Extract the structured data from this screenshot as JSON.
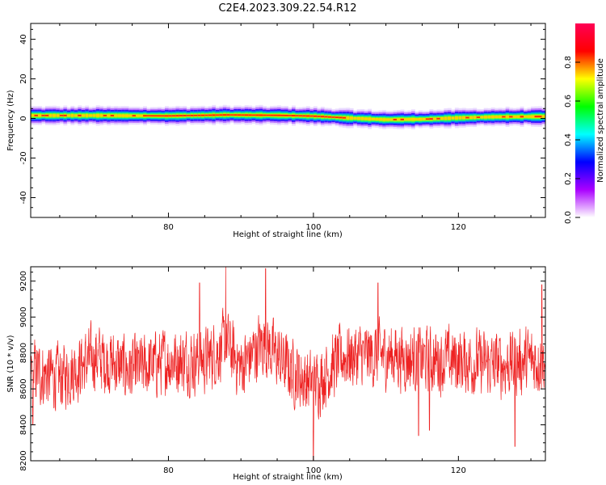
{
  "title": "C2E4.2023.309.22.54.R12",
  "chart_data": [
    {
      "type": "heatmap",
      "xlabel": "Height of straight line (km)",
      "ylabel": "Frequency (Hz)",
      "xlim": [
        61,
        132
      ],
      "ylim": [
        -50,
        48
      ],
      "x_ticks": [
        80,
        100,
        120
      ],
      "y_ticks": [
        40,
        20,
        0,
        -20,
        -40
      ],
      "colorbar": {
        "label": "Normalized spectral amplitude",
        "range": [
          0.0,
          1.0
        ],
        "ticks": [
          0.0,
          0.2,
          0.4,
          0.6,
          0.8
        ],
        "colormap": "gist_rainbow",
        "colors": [
          "#ffffff",
          "#aa00ff",
          "#0000ff",
          "#00ffff",
          "#00ff00",
          "#ffff00",
          "#ff0000",
          "#ff0055"
        ]
      },
      "band": {
        "center_hz": [
          [
            61,
            1.5
          ],
          [
            70,
            1.5
          ],
          [
            80,
            1.3
          ],
          [
            88,
            1.8
          ],
          [
            95,
            1.6
          ],
          [
            100,
            1.2
          ],
          [
            105,
            0.2
          ],
          [
            110,
            -0.6
          ],
          [
            115,
            -0.4
          ],
          [
            120,
            0.3
          ],
          [
            125,
            0.8
          ],
          [
            132,
            1.0
          ]
        ],
        "halfwidth_hz": 4.5
      },
      "grid": false
    },
    {
      "type": "line",
      "xlabel": "Height of straight line (km)",
      "ylabel": "SNR (10 * v/v)",
      "xlim": [
        61,
        132
      ],
      "ylim": [
        8200,
        9280
      ],
      "x_ticks": [
        80,
        100,
        120
      ],
      "y_ticks": [
        8200,
        8400,
        8600,
        8800,
        9000,
        9200
      ],
      "series": [
        {
          "color": "#ee2222",
          "mean": 8740,
          "trend": [
            [
              61,
              8700
            ],
            [
              65,
              8660
            ],
            [
              70,
              8780
            ],
            [
              75,
              8700
            ],
            [
              80,
              8760
            ],
            [
              85,
              8760
            ],
            [
              88,
              8850
            ],
            [
              90,
              8720
            ],
            [
              93,
              8860
            ],
            [
              97,
              8700
            ],
            [
              100,
              8620
            ],
            [
              104,
              8780
            ],
            [
              110,
              8790
            ],
            [
              115,
              8760
            ],
            [
              120,
              8760
            ],
            [
              125,
              8730
            ],
            [
              130,
              8760
            ],
            [
              132,
              8760
            ]
          ],
          "peaks": [
            [
              87.9,
              9280
            ],
            [
              93.4,
              9270
            ],
            [
              84.3,
              9190
            ],
            [
              100.0,
              8200
            ],
            [
              127.8,
              8280
            ],
            [
              116.0,
              8370
            ],
            [
              114.5,
              8340
            ],
            [
              61.3,
              8400
            ],
            [
              108.9,
              9190
            ],
            [
              131.5,
              9180
            ]
          ]
        }
      ],
      "grid": false
    }
  ]
}
